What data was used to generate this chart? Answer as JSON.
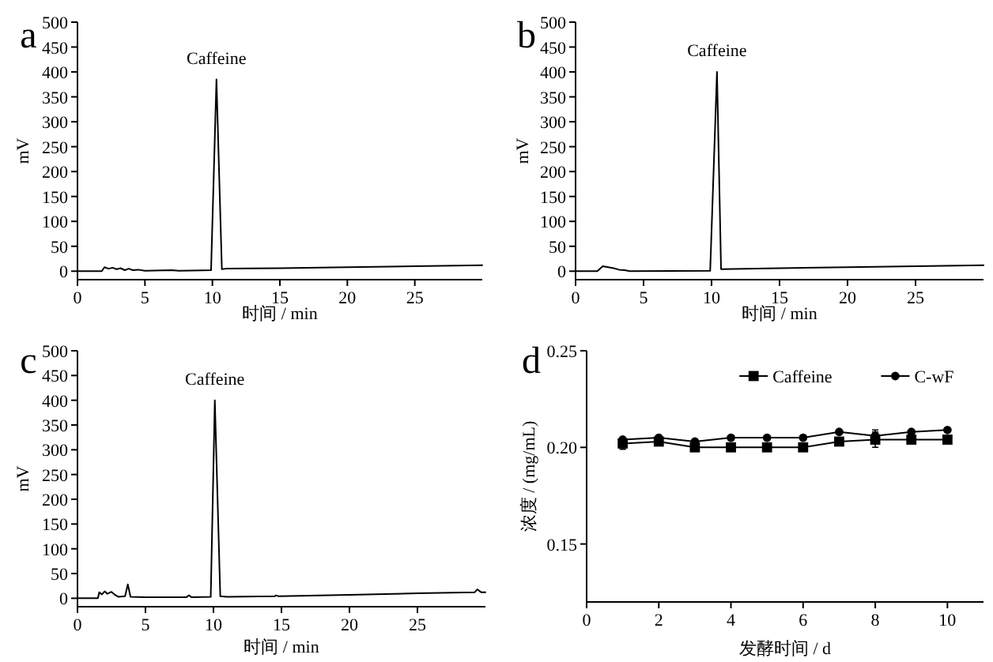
{
  "chart_data": [
    {
      "type": "line",
      "title": "a",
      "xlabel": "时间 / min",
      "ylabel": "mV",
      "xlim": [
        0,
        30
      ],
      "xticks": [
        0,
        5,
        10,
        15,
        20,
        25
      ],
      "ylim": [
        -17,
        500
      ],
      "yticks": [
        0,
        50,
        100,
        150,
        200,
        250,
        300,
        350,
        400,
        450,
        500
      ],
      "annotations": [
        {
          "text": "Caffeine",
          "x": 10.3,
          "y": 385
        }
      ],
      "series": [
        {
          "color": "#000000",
          "x": [
            0,
            1.8,
            2,
            2.3,
            2.6,
            2.9,
            3.2,
            3.5,
            3.8,
            4.1,
            4.5,
            5,
            7,
            7.5,
            9.9,
            10.3,
            10.7,
            11,
            15,
            20,
            25,
            30
          ],
          "values": [
            0,
            0,
            8,
            5,
            7,
            4,
            6,
            2,
            5,
            2,
            3,
            1,
            2,
            1,
            2,
            385,
            4,
            5,
            6,
            8,
            10,
            12
          ]
        }
      ]
    },
    {
      "type": "line",
      "title": "b",
      "xlabel": "时间 / min",
      "ylabel": "mV",
      "xlim": [
        0,
        30
      ],
      "xticks": [
        0,
        5,
        10,
        15,
        20,
        25
      ],
      "ylim": [
        -17,
        500
      ],
      "yticks": [
        0,
        50,
        100,
        150,
        200,
        250,
        300,
        350,
        400,
        450,
        500
      ],
      "annotations": [
        {
          "text": "Caffeine",
          "x": 10.4,
          "y": 400
        }
      ],
      "series": [
        {
          "color": "#000000",
          "x": [
            0,
            1.6,
            2,
            2.4,
            2.8,
            3.2,
            3.6,
            4,
            9.9,
            10.4,
            10.7,
            15,
            20,
            25,
            30
          ],
          "values": [
            0,
            0,
            10,
            8,
            6,
            3,
            2,
            0,
            1,
            400,
            4,
            6,
            8,
            10,
            12
          ]
        }
      ]
    },
    {
      "type": "line",
      "title": "c",
      "xlabel": "时间 / min",
      "ylabel": "mV",
      "xlim": [
        0,
        30
      ],
      "xticks": [
        0,
        5,
        10,
        15,
        20,
        25
      ],
      "ylim": [
        -17,
        500
      ],
      "yticks": [
        0,
        50,
        100,
        150,
        200,
        250,
        300,
        350,
        400,
        450,
        500
      ],
      "annotations": [
        {
          "text": "Caffeine",
          "x": 10.1,
          "y": 400
        }
      ],
      "series": [
        {
          "color": "#000000",
          "x": [
            0,
            1.5,
            1.6,
            1.8,
            2.0,
            2.2,
            2.5,
            2.7,
            3.0,
            3.5,
            3.7,
            3.9,
            5,
            8,
            8.2,
            8.4,
            9.8,
            10.1,
            10.5,
            11,
            14.5,
            14.6,
            14.8,
            20,
            25,
            29.2,
            29.4,
            29.7,
            30
          ],
          "values": [
            0,
            0,
            12,
            8,
            14,
            9,
            13,
            8,
            3,
            4,
            28,
            3,
            2,
            2,
            6,
            2,
            3,
            400,
            4,
            3,
            4,
            6,
            4,
            7,
            10,
            12,
            18,
            12,
            12
          ]
        }
      ]
    },
    {
      "type": "line",
      "title": "d",
      "xlabel": "发酵时间 / d",
      "ylabel": "浓度 / (mg/mL)",
      "xlim": [
        0,
        11
      ],
      "xticks": [
        0,
        2,
        4,
        6,
        8,
        10
      ],
      "ylim": [
        0.12,
        0.25
      ],
      "yticks": [
        {
          "value": 0.15,
          "label": "0.15"
        },
        {
          "value": 0.2,
          "label": "0.20"
        },
        {
          "value": 0.25,
          "label": "0.25"
        }
      ],
      "legend": "top right",
      "x": [
        1,
        2,
        3,
        4,
        5,
        6,
        7,
        8,
        9,
        10
      ],
      "series": [
        {
          "name": "Caffeine",
          "color": "#000000",
          "marker": "square",
          "values": [
            0.202,
            0.203,
            0.2,
            0.2,
            0.2,
            0.2,
            0.203,
            0.204,
            0.204,
            0.204
          ],
          "errors": [
            0.003,
            null,
            null,
            null,
            null,
            null,
            null,
            0.004,
            null,
            null
          ]
        },
        {
          "name": "C-wF",
          "color": "#000000",
          "marker": "circle",
          "values": [
            0.204,
            0.205,
            0.203,
            0.205,
            0.205,
            0.205,
            0.208,
            0.206,
            0.208,
            0.209
          ],
          "errors": [
            null,
            null,
            null,
            null,
            null,
            null,
            null,
            0.003,
            null,
            null
          ]
        }
      ]
    }
  ]
}
